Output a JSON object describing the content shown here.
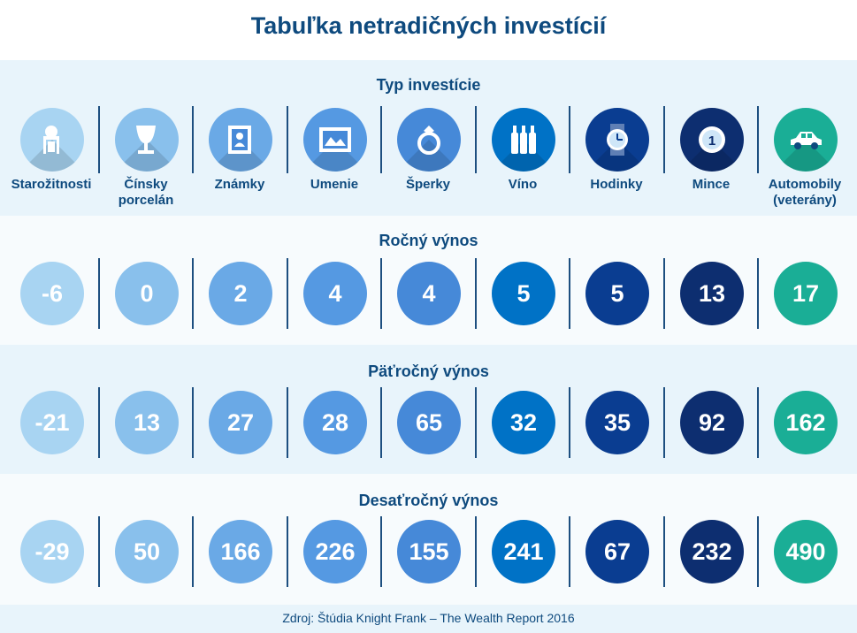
{
  "title": "Tabuľka netradičných investícií",
  "footer": "Zdroj: Štúdia Knight Frank – The Wealth Report 2016",
  "chart_data": {
    "type": "table",
    "title": "Tabuľka netradičných investícií",
    "header_title": "Typ investície",
    "categories": [
      {
        "label": "Starožitnosti",
        "icon": "chair-icon"
      },
      {
        "label": "Čínsky porcelán",
        "icon": "vase-icon"
      },
      {
        "label": "Známky",
        "icon": "stamp-icon"
      },
      {
        "label": "Umenie",
        "icon": "painting-icon"
      },
      {
        "label": "Šperky",
        "icon": "ring-icon"
      },
      {
        "label": "Víno",
        "icon": "wine-bottles-icon"
      },
      {
        "label": "Hodinky",
        "icon": "watch-icon"
      },
      {
        "label": "Mince",
        "icon": "coin-icon"
      },
      {
        "label": "Automobily (veterány)",
        "icon": "car-icon"
      }
    ],
    "series": [
      {
        "name": "Ročný výnos",
        "values": [
          -6,
          0,
          2,
          4,
          4,
          5,
          5,
          13,
          17
        ]
      },
      {
        "name": "Päťročný výnos",
        "values": [
          -21,
          13,
          27,
          28,
          65,
          32,
          35,
          92,
          162
        ]
      },
      {
        "name": "Desaťročný výnos",
        "values": [
          -29,
          50,
          166,
          226,
          155,
          241,
          67,
          232,
          490
        ]
      }
    ],
    "colors": [
      "#a8d4f2",
      "#89c0ec",
      "#6aa9e6",
      "#5599e2",
      "#4689d8",
      "#0072c6",
      "#0a3d91",
      "#0d2e70",
      "#1aae96"
    ]
  }
}
